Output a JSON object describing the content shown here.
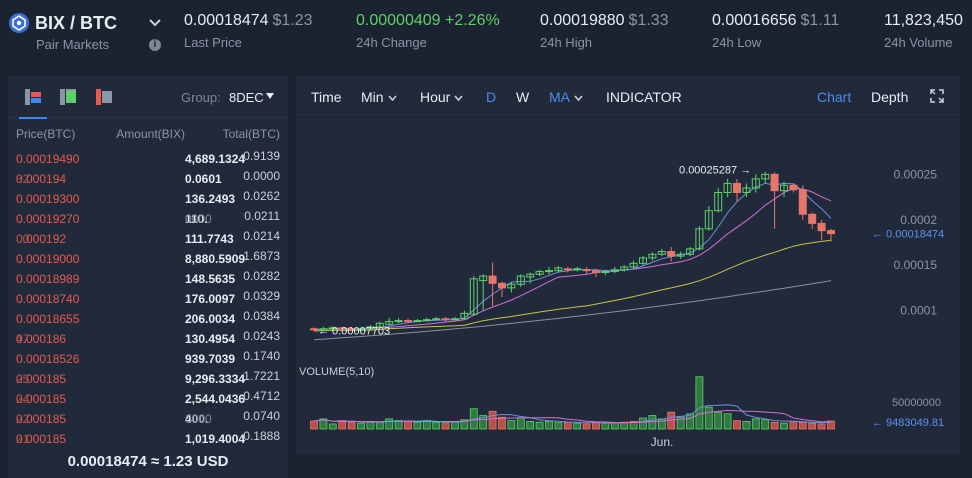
{
  "pair": {
    "name": "BIX / BTC",
    "subtitle": "Pair Markets"
  },
  "stats": [
    {
      "value": "0.00018474",
      "usd": "$1.23",
      "label": "Last Price"
    },
    {
      "value": "0.00000409 +2.26%",
      "usd": "",
      "label": "24h Change"
    },
    {
      "value": "0.00019880",
      "usd": "$1.33",
      "label": "24h High"
    },
    {
      "value": "0.00016656",
      "usd": "$1.11",
      "label": "24h Low"
    },
    {
      "value": "11,823,450",
      "usd": "",
      "label": "24h Volume"
    }
  ],
  "book": {
    "group_label": "Group:",
    "group_value": "8DEC",
    "columns": {
      "price": "Price(BTC)",
      "amount": "Amount(BIX)",
      "total": "Total(BTC)"
    },
    "rows": [
      {
        "price": "0.00019490",
        "price_dim": "",
        "amount": "4,689.1324",
        "amount_dim": "",
        "total": "0.9139"
      },
      {
        "price": "0.000194",
        "price_dim": "32",
        "amount": "0.0601",
        "amount_dim": "",
        "total": "0.0000"
      },
      {
        "price": "0.00019300",
        "price_dim": "",
        "amount": "136.2493",
        "amount_dim": "",
        "total": "0.0262"
      },
      {
        "price": "0.00019270",
        "price_dim": "",
        "amount": "110.",
        "amount_dim": "0000",
        "total": "0.0211"
      },
      {
        "price": "0.000192",
        "price_dim": "00",
        "amount": "111.7743",
        "amount_dim": "",
        "total": "0.0214"
      },
      {
        "price": "0.00019000",
        "price_dim": "",
        "amount": "8,880.5909",
        "amount_dim": "",
        "total": "1.6873"
      },
      {
        "price": "0.00018989",
        "price_dim": "",
        "amount": "148.5635",
        "amount_dim": "",
        "total": "0.0282"
      },
      {
        "price": "0.00018740",
        "price_dim": "",
        "amount": "176.0097",
        "amount_dim": "",
        "total": "0.0329"
      },
      {
        "price": "0.00018655",
        "price_dim": "",
        "amount": "206.0034",
        "amount_dim": "",
        "total": "0.0384"
      },
      {
        "price": "0.000186",
        "price_dim": "47",
        "amount": "130.4954",
        "amount_dim": "",
        "total": "0.0243"
      },
      {
        "price": "0.00018526",
        "price_dim": "",
        "amount": "939.7039",
        "amount_dim": "",
        "total": "0.1740"
      },
      {
        "price": "0.000185",
        "price_dim": "25",
        "amount": "9,296.3334",
        "amount_dim": "",
        "total": "1.7221"
      },
      {
        "price": "0.000185",
        "price_dim": "24",
        "amount": "2,544.0436",
        "amount_dim": "",
        "total": "0.4712"
      },
      {
        "price": "0.000185",
        "price_dim": "22",
        "amount": "400.",
        "amount_dim": "0000",
        "total": "0.0740"
      },
      {
        "price": "0.000185",
        "price_dim": "21",
        "amount": "1,019.4004",
        "amount_dim": "",
        "total": "0.1888"
      }
    ],
    "footer": "0.00018474 ≈ 1.23 USD"
  },
  "toolbar": {
    "time": "Time",
    "min": "Min",
    "hour": "Hour",
    "d": "D",
    "w": "W",
    "ma": "MA",
    "indicator": "INDICATOR",
    "chart": "Chart",
    "depth": "Depth"
  },
  "chart_data": {
    "type": "candlestick",
    "y_ticks": [
      "0.00025",
      "0.0002",
      "0.00015",
      "0.0001"
    ],
    "price_ylim": [
      5e-05,
      0.00029
    ],
    "high_annotation": "0.00025287 →",
    "low_annotation": "← 0.00007703",
    "last_annotation": "← 0.00018474",
    "volume_label": "VOLUME(5,10)",
    "volume_tick": "50000000",
    "volume_last": "← 9483049.81",
    "volume_ylim": [
      0,
      70000000
    ],
    "x_label": "Jun.",
    "colors": {
      "up": "#5fd068",
      "down": "#e8756a",
      "ma5": "#6b8fe0",
      "ma10": "#d46fd6",
      "ma30": "#c9c24a",
      "ma60": "#8a909c"
    },
    "candles": [
      [
        8e-05,
        7.9e-05,
        7.7e-05,
        8.15e-05
      ],
      [
        7.8e-05,
        8e-05,
        7.7e-05,
        8.2e-05
      ],
      [
        8e-05,
        8.1e-05,
        7.9e-05,
        8.3e-05
      ],
      [
        8.1e-05,
        8e-05,
        7.8e-05,
        8.25e-05
      ],
      [
        8e-05,
        7.9e-05,
        7.75e-05,
        8.2e-05
      ],
      [
        7.9e-05,
        8e-05,
        7.8e-05,
        8.15e-05
      ],
      [
        8e-05,
        8.2e-05,
        7.9e-05,
        8.4e-05
      ],
      [
        8.2e-05,
        8.6e-05,
        8.1e-05,
        8.8e-05
      ],
      [
        8.5e-05,
        8.8e-05,
        8.4e-05,
        9.2e-05
      ],
      [
        8.8e-05,
        8.9e-05,
        8.6e-05,
        9.2e-05
      ],
      [
        8.9e-05,
        8.8e-05,
        8.6e-05,
        9.1e-05
      ],
      [
        8.8e-05,
        8.9e-05,
        8.7e-05,
        9.1e-05
      ],
      [
        8.9e-05,
        9e-05,
        8.8e-05,
        9.2e-05
      ],
      [
        9e-05,
        9.1e-05,
        8.9e-05,
        9.3e-05
      ],
      [
        9.1e-05,
        9e-05,
        8.8e-05,
        9.3e-05
      ],
      [
        9e-05,
        9.1e-05,
        8.9e-05,
        9.3e-05
      ],
      [
        9.1e-05,
        9.7e-05,
        9e-05,
        0.0001
      ],
      [
        9.6e-05,
        0.000135,
        9.5e-05,
        0.000138
      ],
      [
        0.000133,
        0.000138,
        0.0001,
        0.00014
      ],
      [
        0.000138,
        0.00013,
        0.000105,
        0.000153
      ],
      [
        0.00013,
        0.000125,
        0.000115,
        0.000132
      ],
      [
        0.000125,
        0.000129,
        0.00012,
        0.000131
      ],
      [
        0.000129,
        0.000138,
        0.000126,
        0.00014
      ],
      [
        0.000137,
        0.00014,
        0.00013,
        0.000142
      ],
      [
        0.00014,
        0.000143,
        0.000138,
        0.000145
      ],
      [
        0.000143,
        0.000144,
        0.00014,
        0.000148
      ],
      [
        0.000144,
        0.000147,
        0.000142,
        0.000149
      ],
      [
        0.000146,
        0.000145,
        0.000142,
        0.000148
      ],
      [
        0.000145,
        0.000146,
        0.000143,
        0.000148
      ],
      [
        0.000145,
        0.000144,
        0.00014,
        0.000148
      ],
      [
        0.000144,
        0.000142,
        0.000137,
        0.000146
      ],
      [
        0.000142,
        0.000143,
        0.000139,
        0.000145
      ],
      [
        0.000143,
        0.000145,
        0.000141,
        0.000148
      ],
      [
        0.000145,
        0.000148,
        0.000143,
        0.00015
      ],
      [
        0.000148,
        0.000152,
        0.000146,
        0.000155
      ],
      [
        0.000152,
        0.000158,
        0.00015,
        0.00016
      ],
      [
        0.000158,
        0.000162,
        0.000155,
        0.000164
      ],
      [
        0.000162,
        0.000165,
        0.00016,
        0.000168
      ],
      [
        0.000165,
        0.00016,
        0.000154,
        0.00017
      ],
      [
        0.00016,
        0.000162,
        0.000157,
        0.000165
      ],
      [
        0.000162,
        0.000168,
        0.00016,
        0.00017
      ],
      [
        0.000168,
        0.00019,
        0.000166,
        0.000193
      ],
      [
        0.00019,
        0.00021,
        0.000188,
        0.000215
      ],
      [
        0.00021,
        0.00023,
        0.000208,
        0.000235
      ],
      [
        0.00023,
        0.00024,
        0.000225,
        0.000245
      ],
      [
        0.00024,
        0.00023,
        0.00022,
        0.000245
      ],
      [
        0.00023,
        0.000235,
        0.000225,
        0.00024
      ],
      [
        0.000235,
        0.000245,
        0.00023,
        0.00025
      ],
      [
        0.000245,
        0.00025,
        0.00024,
        0.0002529
      ],
      [
        0.00025,
        0.000232,
        0.00019,
        0.000252
      ],
      [
        0.000232,
        0.000238,
        0.000225,
        0.000242
      ],
      [
        0.000238,
        0.000233,
        0.00023,
        0.00024
      ],
      [
        0.000233,
        0.000206,
        0.0002,
        0.000238
      ],
      [
        0.000206,
        0.000196,
        0.00019,
        0.000208
      ],
      [
        0.000196,
        0.000188,
        0.000178,
        0.0002
      ],
      [
        0.000188,
        0.0001847,
        0.000176,
        0.00019
      ]
    ],
    "volumes": [
      9500000,
      12000000,
      6000000,
      10000000,
      8000000,
      7000000,
      9000000,
      8000000,
      12000000,
      10000000,
      9000000,
      8000000,
      10000000,
      8000000,
      7500000,
      8000000,
      11000000,
      24000000,
      16000000,
      21000000,
      14000000,
      10000000,
      13000000,
      9000000,
      8000000,
      9000000,
      7500000,
      8000000,
      7000000,
      6000000,
      8000000,
      7000000,
      7500000,
      8000000,
      9000000,
      13000000,
      16000000,
      12000000,
      20000000,
      14000000,
      18000000,
      62000000,
      26000000,
      20000000,
      18000000,
      10000000,
      9000000,
      12000000,
      11000000,
      8000000,
      7000000,
      9000000,
      8000000,
      7000000,
      6000000,
      9483049
    ]
  }
}
